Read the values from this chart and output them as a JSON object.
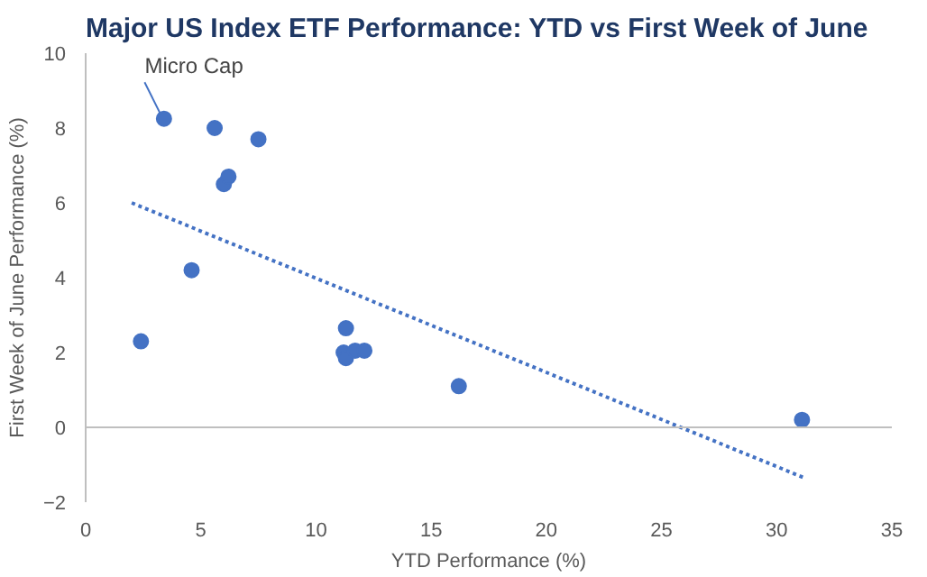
{
  "chart_data": {
    "type": "scatter",
    "title": "Major US Index ETF Performance: YTD vs First Week of June",
    "xlabel": "YTD Performance (%)",
    "ylabel": "First Week of June Performance (%)",
    "xlim": [
      0,
      35
    ],
    "xticks": [
      0,
      5,
      10,
      15,
      20,
      25,
      30,
      35
    ],
    "ylim": [
      -2,
      10
    ],
    "yticks": [
      -2,
      0,
      2,
      4,
      6,
      8,
      10
    ],
    "grid": false,
    "ref_lines": [
      {
        "axis": "y",
        "value": 0,
        "color": "#bfbfbf"
      }
    ],
    "series": [
      {
        "marker": "circle",
        "color": "#4472c4",
        "x": [
          2.4,
          3.4,
          5.6,
          7.5,
          6.0,
          6.2,
          4.6,
          11.3,
          11.2,
          11.3,
          11.7,
          12.1,
          16.2,
          31.1
        ],
        "values": [
          2.3,
          8.25,
          8.0,
          7.7,
          6.5,
          6.7,
          4.2,
          2.65,
          2.0,
          1.85,
          2.05,
          2.05,
          1.1,
          0.2
        ]
      },
      {
        "type": "line",
        "color": "#4472c4",
        "line_style": "dotted",
        "x": [
          2.0,
          31.2
        ],
        "values": [
          6.0,
          -1.35
        ]
      }
    ],
    "annotations": [
      {
        "text": "Micro Cap",
        "x": 3.4,
        "y": 8.25
      }
    ]
  }
}
